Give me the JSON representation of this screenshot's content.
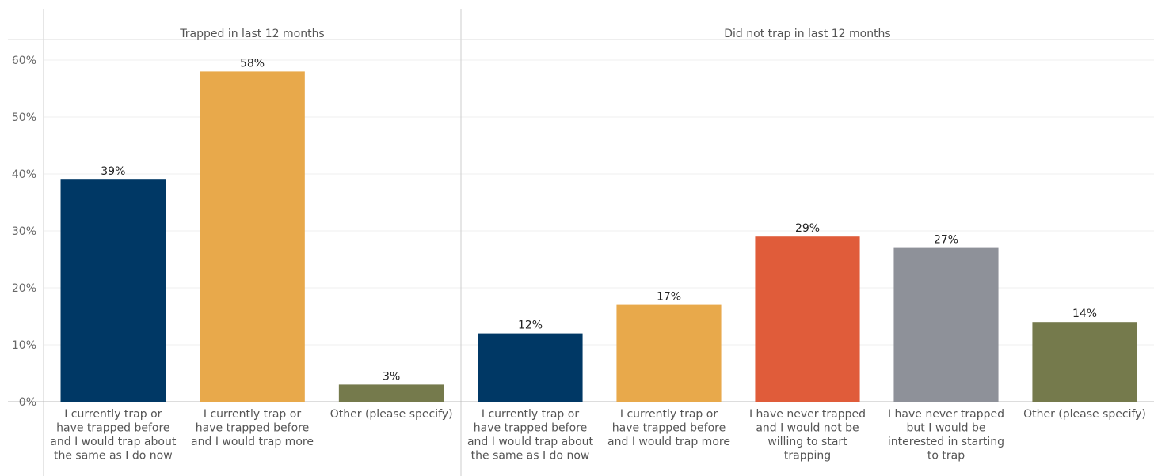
{
  "chart_data": {
    "type": "bar",
    "ylim": [
      0,
      60
    ],
    "yticks": [
      "0%",
      "10%",
      "20%",
      "30%",
      "40%",
      "50%",
      "60%"
    ],
    "grid": true,
    "panels": [
      {
        "title": "Trapped in last 12 months",
        "categories": [
          "I currently trap or have trapped before and I would trap about the same as I do now",
          "I currently trap or have trapped before and I would trap more",
          "Other (please specify)"
        ],
        "values": [
          39,
          58,
          3
        ],
        "labels": [
          "39%",
          "58%",
          "3%"
        ],
        "colors": [
          "#003865",
          "#E8A94B",
          "#757A4C"
        ]
      },
      {
        "title": "Did not trap in last 12 months",
        "categories": [
          "I currently trap or have trapped before and I would trap about the same as I do now",
          "I currently trap or have trapped before and I would trap more",
          "I have never trapped and I would not be willing to start trapping",
          "I have never trapped but I would be interested in starting to trap",
          "Other (please specify)"
        ],
        "values": [
          12,
          17,
          29,
          27,
          14
        ],
        "labels": [
          "12%",
          "17%",
          "29%",
          "27%",
          "14%"
        ],
        "colors": [
          "#003865",
          "#E8A94B",
          "#E05C3A",
          "#8E9199",
          "#757A4C"
        ]
      }
    ]
  }
}
